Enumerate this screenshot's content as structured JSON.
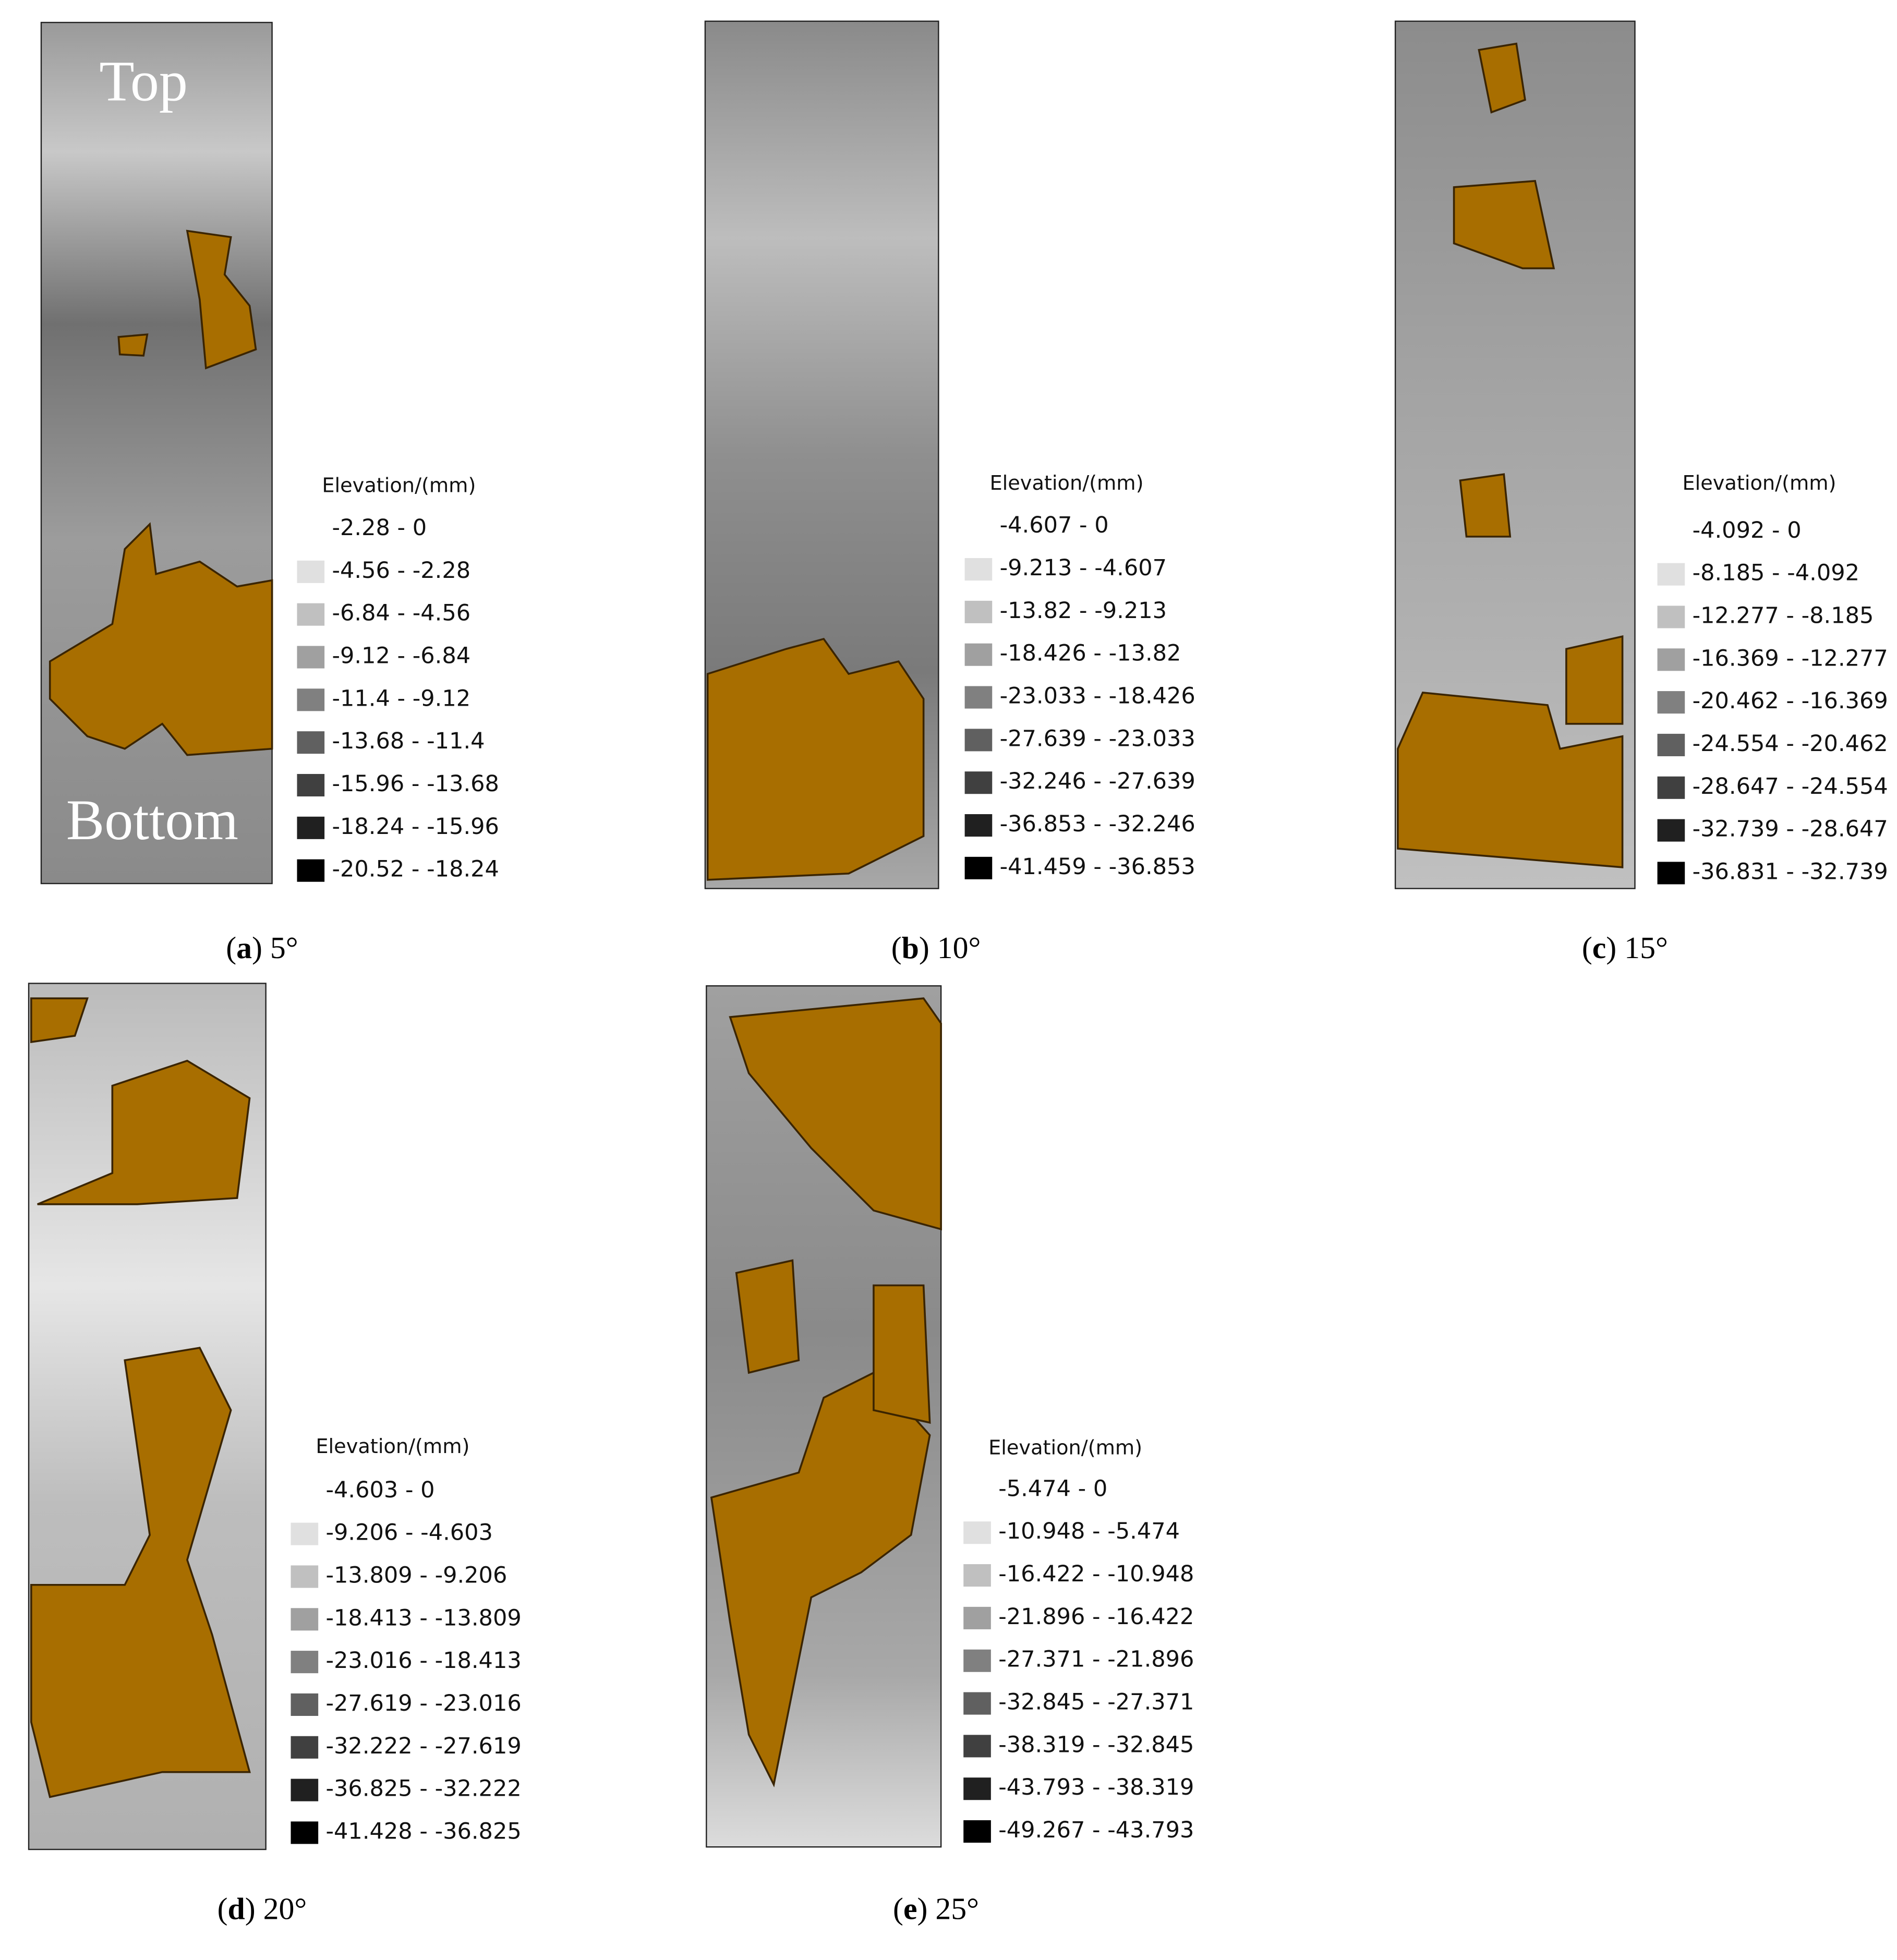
{
  "panels": [
    {
      "caption": {
        "open": "(",
        "letter": "a",
        "rest": ") 5°"
      },
      "labels": [
        "Top",
        "Bottom"
      ],
      "legend": {
        "title": "Elevation/(mm)",
        "items": [
          "-2.28 - 0",
          "-4.56 - -2.28",
          "-6.84 - -4.56",
          "-9.12 - -6.84",
          "-11.4 - -9.12",
          "-13.68 - -11.4",
          "-15.96 - -13.68",
          "-18.24 - -15.96",
          "-20.52 - -18.24"
        ]
      }
    },
    {
      "caption": {
        "open": "(",
        "letter": "b",
        "rest": ") 10°"
      },
      "legend": {
        "title": "Elevation/(mm)",
        "items": [
          "-4.607 - 0",
          "-9.213 - -4.607",
          "-13.82 - -9.213",
          "-18.426 - -13.82",
          "-23.033 - -18.426",
          "-27.639 - -23.033",
          "-32.246 - -27.639",
          "-36.853 - -32.246",
          "-41.459 - -36.853"
        ]
      }
    },
    {
      "caption": {
        "open": "(",
        "letter": "c",
        "rest": ") 15°"
      },
      "legend": {
        "title": "Elevation/(mm)",
        "items": [
          "-4.092 - 0",
          "-8.185 - -4.092",
          "-12.277 - -8.185",
          "-16.369 - -12.277",
          "-20.462 - -16.369",
          "-24.554 - -20.462",
          "-28.647 - -24.554",
          "-32.739 - -28.647",
          "-36.831 - -32.739"
        ]
      }
    },
    {
      "caption": {
        "open": "(",
        "letter": "d",
        "rest": ") 20°"
      },
      "legend": {
        "title": "Elevation/(mm)",
        "items": [
          "-4.603 - 0",
          "-9.206 - -4.603",
          "-13.809 - -9.206",
          "-18.413 - -13.809",
          "-23.016 - -18.413",
          "-27.619 - -23.016",
          "-32.222 - -27.619",
          "-36.825 - -32.222",
          "-41.428 - -36.825"
        ]
      }
    },
    {
      "caption": {
        "open": "(",
        "letter": "e",
        "rest": ") 25°"
      },
      "legend": {
        "title": "Elevation/(mm)",
        "items": [
          "-5.474 - 0",
          "-10.948 - -5.474",
          "-16.422 - -10.948",
          "-21.896 - -16.422",
          "-27.371 - -21.896",
          "-32.845 - -27.371",
          "-38.319 - -32.845",
          "-43.793 - -38.319",
          "-49.267 - -43.793"
        ]
      }
    }
  ]
}
